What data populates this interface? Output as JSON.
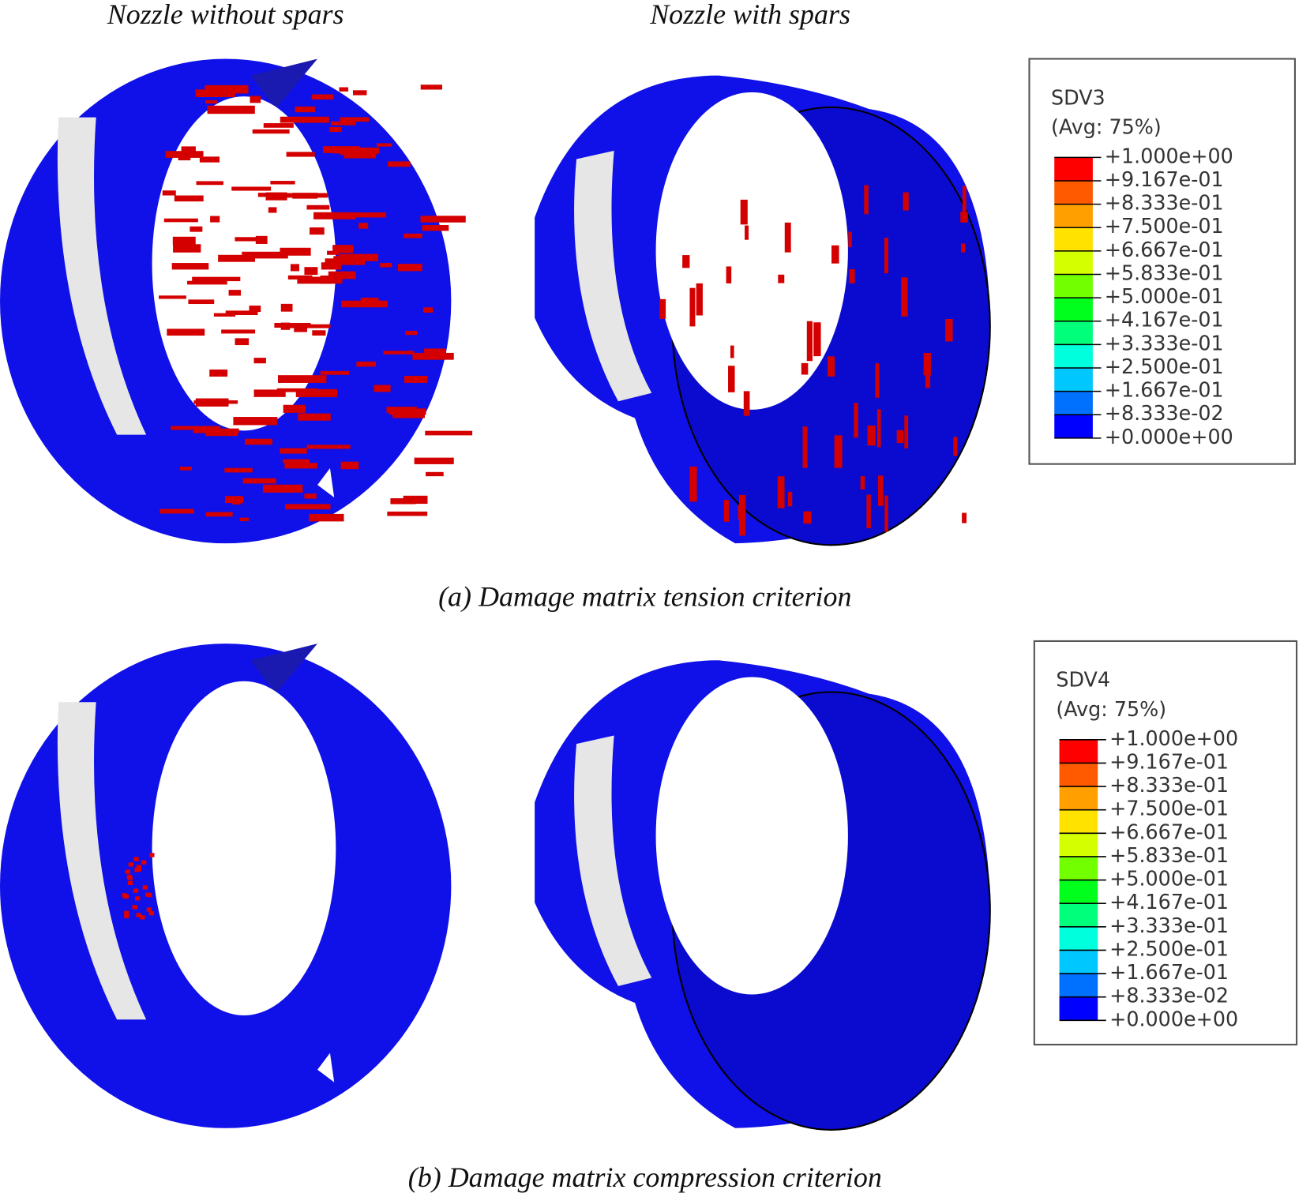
{
  "header": {
    "left_label": "Nozzle without spars",
    "right_label": "Nozzle with spars"
  },
  "panels": [
    {
      "caption": "(a) Damage matrix tension criterion",
      "legend": {
        "title": "SDV3",
        "subtitle": "(Avg: 75%)",
        "labels": [
          "+1.000e+00",
          "+9.167e-01",
          "+8.333e-01",
          "+7.500e-01",
          "+6.667e-01",
          "+5.833e-01",
          "+5.000e-01",
          "+4.167e-01",
          "+3.333e-01",
          "+2.500e-01",
          "+1.667e-01",
          "+8.333e-02",
          "+0.000e+00"
        ],
        "colors": [
          "#ff0000",
          "#ff5a00",
          "#ffa000",
          "#ffe200",
          "#d4ff00",
          "#72ff00",
          "#00ff1c",
          "#00ff7a",
          "#00ffdc",
          "#00c8ff",
          "#0070ff",
          "#0000ff"
        ]
      }
    },
    {
      "caption": "(b) Damage matrix compression criterion",
      "legend": {
        "title": "SDV4",
        "subtitle": "(Avg: 75%)",
        "labels": [
          "+1.000e+00",
          "+9.167e-01",
          "+8.333e-01",
          "+7.500e-01",
          "+6.667e-01",
          "+5.833e-01",
          "+5.000e-01",
          "+4.167e-01",
          "+3.333e-01",
          "+2.500e-01",
          "+1.667e-01",
          "+8.333e-02",
          "+0.000e+00"
        ],
        "colors": [
          "#ff0000",
          "#ff5a00",
          "#ffa000",
          "#ffe200",
          "#d4ff00",
          "#72ff00",
          "#00ff1c",
          "#00ff7a",
          "#00ffdc",
          "#00c8ff",
          "#0070ff",
          "#0000ff"
        ]
      }
    }
  ]
}
